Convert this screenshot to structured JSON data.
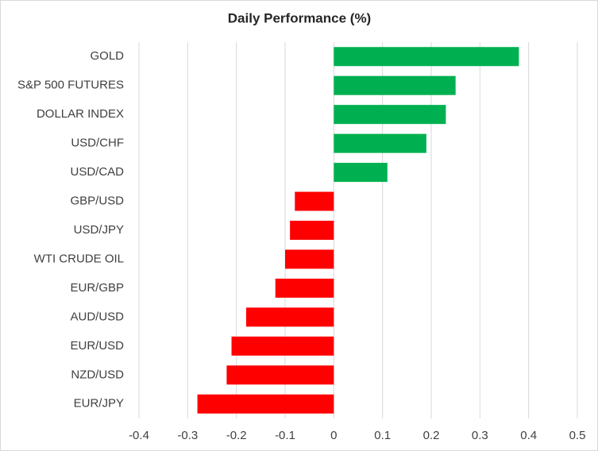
{
  "chart_data": {
    "type": "hbar",
    "title": "Daily Performance (%)",
    "categories": [
      "GOLD",
      "S&P 500 FUTURES",
      "DOLLAR INDEX",
      "USD/CHF",
      "USD/CAD",
      "GBP/USD",
      "USD/JPY",
      "WTI CRUDE OIL",
      "EUR/GBP",
      "AUD/USD",
      "EUR/USD",
      "NZD/USD",
      "EUR/JPY"
    ],
    "values": [
      0.38,
      0.25,
      0.23,
      0.19,
      0.11,
      -0.08,
      -0.09,
      -0.1,
      -0.12,
      -0.18,
      -0.21,
      -0.22,
      -0.28
    ],
    "positive_color": "#00b050",
    "negative_color": "#ff0000",
    "xlim": [
      -0.4,
      0.5
    ],
    "xticks": [
      -0.4,
      -0.3,
      -0.2,
      -0.1,
      0,
      0.1,
      0.2,
      0.3,
      0.4,
      0.5
    ],
    "grid": true
  }
}
